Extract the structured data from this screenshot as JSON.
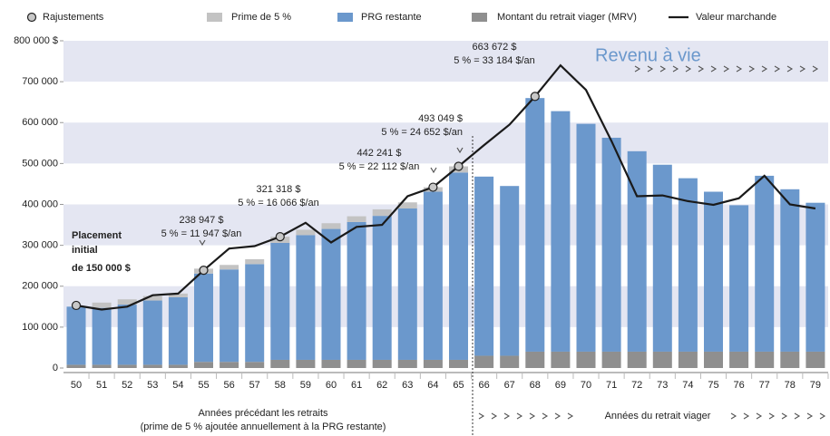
{
  "chart_data": {
    "type": "bar",
    "categories": [
      "50",
      "51",
      "52",
      "53",
      "54",
      "55",
      "56",
      "57",
      "58",
      "59",
      "60",
      "61",
      "62",
      "63",
      "64",
      "65",
      "66",
      "67",
      "68",
      "69",
      "70",
      "71",
      "72",
      "73",
      "74",
      "75",
      "76",
      "77",
      "78",
      "79"
    ],
    "series": [
      {
        "name": "Rajustements",
        "type": "scatter",
        "color": "#c8c8c8",
        "values": [
          153000,
          null,
          null,
          null,
          null,
          239000,
          null,
          null,
          321000,
          null,
          null,
          null,
          null,
          null,
          442000,
          493000,
          null,
          null,
          664000,
          null,
          null,
          null,
          null,
          null,
          null,
          null,
          null,
          null,
          null,
          null
        ]
      },
      {
        "name": "Prime de 5 %",
        "type": "bar",
        "color": "#c3c3c3",
        "values": [
          null,
          13000,
          13000,
          11000,
          9000,
          12000,
          11000,
          12000,
          15000,
          13000,
          14000,
          14000,
          16000,
          15000,
          11000,
          15000,
          null,
          null,
          null,
          null,
          null,
          null,
          null,
          null,
          null,
          null,
          null,
          null,
          null,
          null
        ]
      },
      {
        "name": "PRG restante",
        "type": "bar",
        "color": "#6b98cc",
        "values": [
          142000,
          139000,
          147000,
          157000,
          165000,
          216000,
          226000,
          239000,
          286000,
          305000,
          320000,
          337000,
          352000,
          370000,
          411000,
          458000,
          438000,
          415000,
          620000,
          588000,
          557000,
          523000,
          490000,
          457000,
          424000,
          391000,
          358000,
          430000,
          397000,
          364000
        ]
      },
      {
        "name": "Montant du retrait viager (MRV)",
        "type": "bar",
        "color": "#8f8f8f",
        "values": [
          8000,
          8000,
          8000,
          8000,
          8000,
          15000,
          15000,
          15000,
          20000,
          20000,
          20000,
          20000,
          20000,
          20000,
          20000,
          20000,
          30000,
          30000,
          40000,
          40000,
          40000,
          40000,
          40000,
          40000,
          40000,
          40000,
          40000,
          40000,
          40000,
          40000
        ]
      },
      {
        "name": "Valeur marchande",
        "type": "line",
        "color": "#1a1a1a",
        "values": [
          153000,
          143000,
          150000,
          178000,
          182000,
          239000,
          292000,
          298000,
          321000,
          355000,
          307000,
          345000,
          350000,
          420000,
          442000,
          493000,
          545000,
          595000,
          664000,
          740000,
          680000,
          555000,
          420000,
          422000,
          408000,
          399000,
          415000,
          470000,
          400000,
          390000
        ]
      }
    ],
    "ylim": [
      0,
      800000
    ],
    "yticks": [
      0,
      {
        "value": 100000,
        "label": "100 000"
      },
      {
        "value": 200000,
        "label": "200 000"
      },
      {
        "value": 300000,
        "label": "300 000"
      },
      {
        "value": 400000,
        "label": "400 000"
      },
      {
        "value": 500000,
        "label": "500 000"
      },
      {
        "value": 600000,
        "label": "600 000"
      },
      {
        "value": 700000,
        "label": "700 000"
      },
      {
        "value": 800000,
        "label": "800 000 $"
      }
    ],
    "banded_background": true,
    "annotations": [
      [
        "Placement",
        "initial",
        "de 150 000 $"
      ],
      [
        "238 947 $",
        "5 % = 11 947 $/an"
      ],
      [
        "321 318 $",
        "5 % = 16 066 $/an"
      ],
      [
        "442 241 $",
        "5 % = 22 112 $/an"
      ],
      [
        "493 049 $",
        "5 % = 24 652 $/an"
      ],
      [
        "663 672 $",
        "5 % = 33 184 $/an"
      ]
    ],
    "phase_title": "Revenu à vie",
    "x_label_before": [
      "Années précédant les retraits",
      "(prime de 5 % ajoutée annuellement à la PRG restante)"
    ],
    "x_label_after": "Années du retrait viager"
  }
}
